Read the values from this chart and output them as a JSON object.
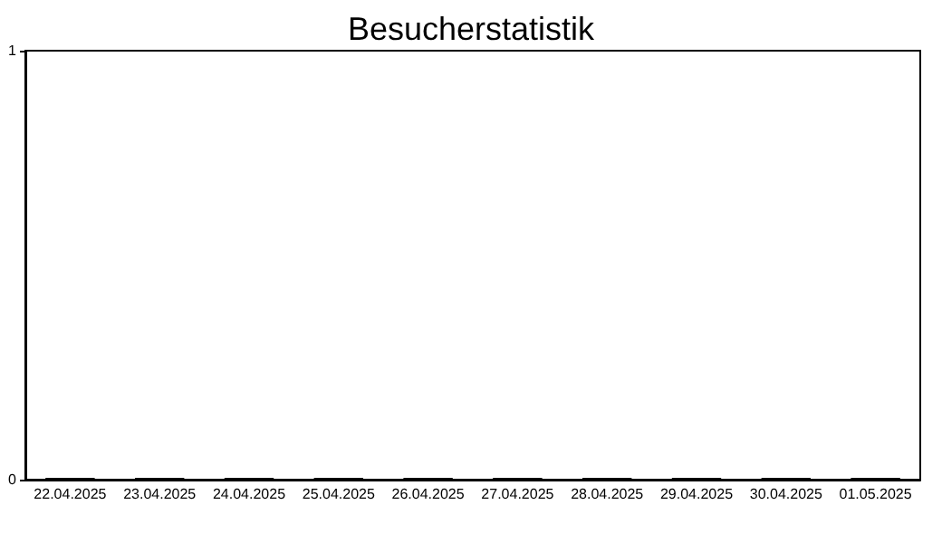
{
  "chart_data": {
    "type": "bar",
    "title": "Besucherstatistik",
    "categories": [
      "22.04.2025",
      "23.04.2025",
      "24.04.2025",
      "25.04.2025",
      "26.04.2025",
      "27.04.2025",
      "28.04.2025",
      "29.04.2025",
      "30.04.2025",
      "01.05.2025"
    ],
    "values": [
      0,
      0,
      0,
      0,
      0,
      0,
      0,
      0,
      0,
      0
    ],
    "color": "#000000",
    "ylim": [
      0,
      1
    ],
    "yticks": [
      0,
      1
    ],
    "grid": false
  }
}
